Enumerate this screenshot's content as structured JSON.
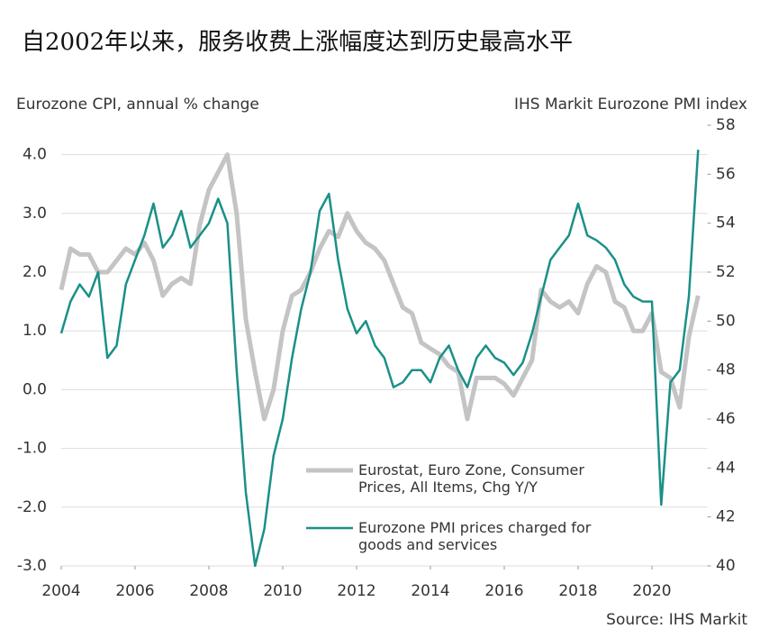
{
  "chart_data": {
    "type": "line",
    "title": "自2002年以来，服务收费上涨幅度达到历史最高水平",
    "ylabel": "Eurozone CPI, annual % change",
    "y2label": "IHS Markit Eurozone PMI index",
    "source": "Source: IHS Markit",
    "x": [
      2004.0,
      2004.25,
      2004.5,
      2004.75,
      2005.0,
      2005.25,
      2005.5,
      2005.75,
      2006.0,
      2006.25,
      2006.5,
      2006.75,
      2007.0,
      2007.25,
      2007.5,
      2007.75,
      2008.0,
      2008.25,
      2008.5,
      2008.75,
      2009.0,
      2009.25,
      2009.5,
      2009.75,
      2010.0,
      2010.25,
      2010.5,
      2010.75,
      2011.0,
      2011.25,
      2011.5,
      2011.75,
      2012.0,
      2012.25,
      2012.5,
      2012.75,
      2013.0,
      2013.25,
      2013.5,
      2013.75,
      2014.0,
      2014.25,
      2014.5,
      2014.75,
      2015.0,
      2015.25,
      2015.5,
      2015.75,
      2016.0,
      2016.25,
      2016.5,
      2016.75,
      2017.0,
      2017.25,
      2017.5,
      2017.75,
      2018.0,
      2018.25,
      2018.5,
      2018.75,
      2019.0,
      2019.25,
      2019.5,
      2019.75,
      2020.0,
      2020.25,
      2020.5,
      2020.75,
      2021.0,
      2021.25
    ],
    "series": [
      {
        "name": "Eurostat, Euro Zone, Consumer Prices, All Items, Chg Y/Y",
        "color": "#c4c4c4",
        "axis": "y",
        "values": [
          1.7,
          2.4,
          2.3,
          2.3,
          2.0,
          2.0,
          2.2,
          2.4,
          2.3,
          2.5,
          2.2,
          1.6,
          1.8,
          1.9,
          1.8,
          2.8,
          3.4,
          3.7,
          4.0,
          3.0,
          1.2,
          0.3,
          -0.5,
          0.0,
          1.0,
          1.6,
          1.7,
          2.0,
          2.4,
          2.7,
          2.6,
          3.0,
          2.7,
          2.5,
          2.4,
          2.2,
          1.8,
          1.4,
          1.3,
          0.8,
          0.7,
          0.6,
          0.4,
          0.3,
          -0.5,
          0.2,
          0.2,
          0.2,
          0.1,
          -0.1,
          0.2,
          0.5,
          1.7,
          1.5,
          1.4,
          1.5,
          1.3,
          1.8,
          2.1,
          2.0,
          1.5,
          1.4,
          1.0,
          1.0,
          1.3,
          0.3,
          0.2,
          -0.3,
          0.9,
          1.6
        ]
      },
      {
        "name": "Eurozone PMI prices charged for goods and services",
        "color": "#1a9088",
        "axis": "y2",
        "values": [
          49.5,
          50.8,
          51.5,
          51.0,
          52.0,
          48.5,
          49.0,
          51.5,
          52.5,
          53.5,
          54.8,
          53.0,
          53.5,
          54.5,
          53.0,
          53.5,
          54.0,
          55.0,
          54.0,
          48.0,
          43.0,
          40.0,
          41.5,
          44.5,
          46.0,
          48.5,
          50.5,
          52.0,
          54.5,
          55.2,
          52.5,
          50.5,
          49.5,
          50.0,
          49.0,
          48.5,
          47.3,
          47.5,
          48.0,
          48.0,
          47.5,
          48.5,
          49.0,
          48.0,
          47.3,
          48.5,
          49.0,
          48.5,
          48.3,
          47.8,
          48.3,
          49.5,
          51.0,
          52.5,
          53.0,
          53.5,
          54.8,
          53.5,
          53.3,
          53.0,
          52.5,
          51.5,
          51.0,
          50.8,
          50.8,
          42.5,
          47.5,
          48.0,
          51.0,
          57.0
        ]
      }
    ],
    "xlim": [
      2004,
      2021.5
    ],
    "xticks": [
      2004,
      2006,
      2008,
      2010,
      2012,
      2014,
      2016,
      2018,
      2020
    ],
    "ylim": [
      -3,
      4.5
    ],
    "yticks": [
      {
        "value": -3,
        "label": "-3.0"
      },
      {
        "value": -2,
        "label": "-2.0"
      },
      {
        "value": -1,
        "label": "-1.0"
      },
      {
        "value": 0,
        "label": "0.0"
      },
      {
        "value": 1,
        "label": "1.0"
      },
      {
        "value": 2,
        "label": "2.0"
      },
      {
        "value": 3,
        "label": "3.0"
      },
      {
        "value": 4,
        "label": "4.0"
      }
    ],
    "y2lim": [
      40,
      58
    ],
    "y2ticks": [
      40,
      42,
      44,
      46,
      48,
      50,
      52,
      54,
      56,
      58
    ],
    "grid": true
  }
}
